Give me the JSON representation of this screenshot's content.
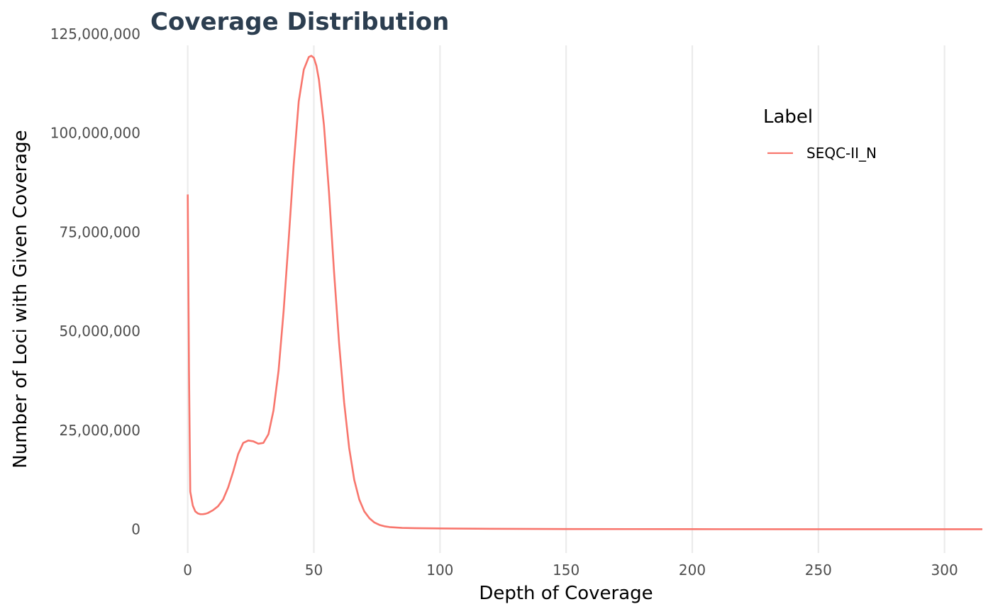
{
  "chart_data": {
    "type": "line",
    "title": "Coverage Distribution",
    "xlabel": "Depth of Coverage",
    "ylabel": "Number of Loci with Given Coverage",
    "xlim": [
      -12,
      315
    ],
    "ylim": [
      -6000000,
      125000000
    ],
    "x_ticks": [
      0,
      50,
      100,
      150,
      200,
      250,
      300
    ],
    "x_tick_labels": [
      "0",
      "50",
      "100",
      "150",
      "200",
      "250",
      "300"
    ],
    "y_ticks": [
      0,
      25000000,
      50000000,
      75000000,
      100000000,
      125000000
    ],
    "y_tick_labels": [
      "0",
      "25,000,000",
      "50,000,000",
      "75,000,000",
      "100,000,000",
      "125,000,000"
    ],
    "grid": {
      "vertical_major": true,
      "horizontal": false
    },
    "legend": {
      "title": "Label",
      "position": "top-right"
    },
    "series": [
      {
        "name": "SEQC-II_N",
        "color": "#F8766D",
        "x": [
          0,
          0.5,
          1,
          2,
          3,
          4,
          5,
          6,
          7,
          8,
          10,
          12,
          14,
          16,
          18,
          20,
          22,
          24,
          26,
          28,
          30,
          32,
          34,
          36,
          38,
          40,
          42,
          44,
          46,
          48,
          49,
          50,
          51,
          52,
          54,
          56,
          58,
          60,
          62,
          64,
          66,
          68,
          70,
          72,
          74,
          76,
          78,
          80,
          85,
          90,
          100,
          120,
          150,
          200,
          250,
          300,
          315
        ],
        "y": [
          84500000,
          40000000,
          9500000,
          6000000,
          4500000,
          4000000,
          3800000,
          3800000,
          3900000,
          4100000,
          4800000,
          5800000,
          7500000,
          10500000,
          14500000,
          19000000,
          21800000,
          22400000,
          22200000,
          21600000,
          21800000,
          24000000,
          30000000,
          40000000,
          55000000,
          73000000,
          92000000,
          108000000,
          116000000,
          119200000,
          119500000,
          119000000,
          117000000,
          113500000,
          102000000,
          85000000,
          65000000,
          47000000,
          32000000,
          20500000,
          12500000,
          7500000,
          4500000,
          2800000,
          1700000,
          1100000,
          750000,
          550000,
          350000,
          280000,
          200000,
          120000,
          60000,
          20000,
          8000,
          4000,
          2000
        ]
      }
    ]
  }
}
